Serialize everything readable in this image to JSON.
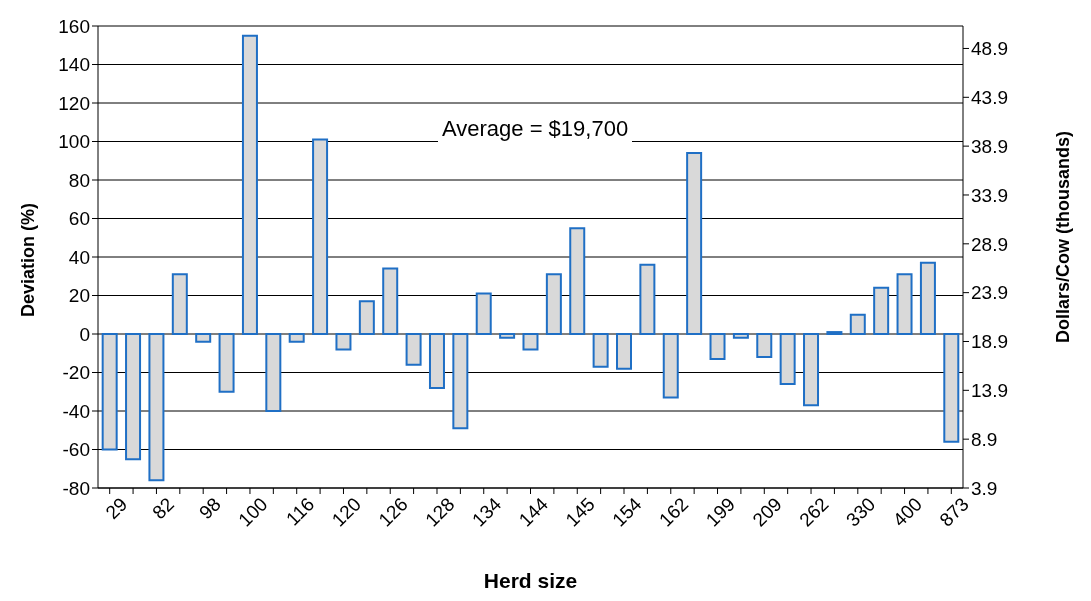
{
  "chart_data": {
    "type": "bar",
    "xlabel": "Herd size",
    "ylabel": "Deviation (%)",
    "y2label": "Dollars/Cow (thousands)",
    "categories": [
      "29",
      null,
      "82",
      null,
      "98",
      null,
      "100",
      null,
      "116",
      null,
      "120",
      null,
      "126",
      null,
      "128",
      null,
      "134",
      null,
      "144",
      null,
      "145",
      null,
      "154",
      null,
      "162",
      null,
      "199",
      null,
      "209",
      null,
      "262",
      null,
      "330",
      null,
      "400",
      null,
      "873"
    ],
    "series": [
      {
        "color": "#1f6fc5",
        "values": [
          -60,
          -65,
          -76,
          31,
          -4,
          -30,
          155,
          -40,
          -4,
          101,
          -8,
          17,
          34,
          -16,
          -28,
          -49,
          21,
          -2,
          -8,
          31,
          55,
          -17,
          -18,
          36,
          -33,
          94,
          -13,
          -2,
          -12,
          -26,
          -37,
          1,
          10,
          24,
          31,
          37,
          -56
        ]
      }
    ],
    "ylim": [
      -80,
      160
    ],
    "yticks": [
      -80,
      -60,
      -40,
      -20,
      0,
      20,
      40,
      60,
      80,
      100,
      120,
      140,
      160
    ],
    "y2lim": [
      3.9,
      51.2
    ],
    "y2ticks": [
      3.9,
      8.9,
      13.9,
      18.9,
      23.9,
      28.9,
      33.9,
      38.9,
      43.9,
      48.9
    ],
    "grid": "y",
    "legend": false,
    "annotations": [
      "Average = $19,700"
    ]
  }
}
